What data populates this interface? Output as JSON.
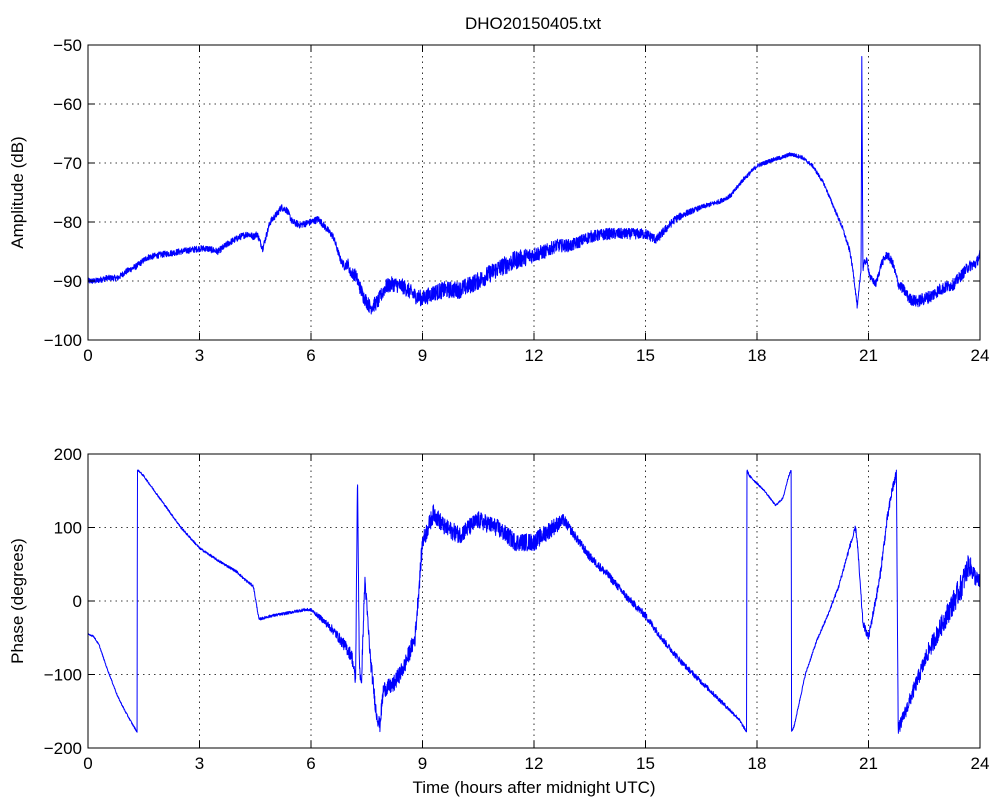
{
  "figure": {
    "title": "DHO20150405.txt",
    "line_color": "#0000ff"
  },
  "chart_data": [
    {
      "type": "line",
      "title": "DHO20150405.txt",
      "xlabel": "",
      "ylabel": "Amplitude (dB)",
      "xlim": [
        0,
        24
      ],
      "ylim": [
        -100,
        -50
      ],
      "xticks": [
        0,
        3,
        6,
        9,
        12,
        15,
        18,
        21,
        24
      ],
      "yticks": [
        -100,
        -90,
        -80,
        -70,
        -60,
        -50
      ],
      "grid": true,
      "series": [
        {
          "color": "#0000ff",
          "noise": [
            [
              0,
              0.5
            ],
            [
              6.8,
              0.6
            ],
            [
              7.3,
              1.2
            ],
            [
              11.5,
              1.6
            ],
            [
              12.5,
              1.1
            ],
            [
              15.0,
              0.9
            ],
            [
              16.5,
              0.4
            ],
            [
              20.0,
              0.3
            ],
            [
              21.5,
              0.7
            ],
            [
              22.5,
              1.1
            ],
            [
              24,
              0.9
            ]
          ],
          "x": [
            0,
            0.2,
            0.5,
            0.8,
            1.0,
            1.3,
            1.6,
            2.0,
            2.5,
            3.0,
            3.2,
            3.5,
            3.8,
            4.1,
            4.3,
            4.45,
            4.55,
            4.7,
            4.9,
            5.1,
            5.2,
            5.35,
            5.5,
            5.7,
            6.0,
            6.2,
            6.4,
            6.6,
            6.8,
            6.9,
            7.0,
            7.05,
            7.2,
            7.4,
            7.6,
            7.8,
            8.0,
            8.2,
            8.5,
            8.8,
            9.0,
            9.3,
            9.6,
            10.0,
            10.5,
            11.0,
            11.5,
            12.0,
            12.3,
            12.6,
            13.0,
            13.5,
            14.0,
            14.5,
            15.0,
            15.3,
            15.5,
            15.8,
            16.1,
            16.5,
            17.0,
            17.3,
            17.6,
            18.0,
            18.4,
            18.7,
            18.9,
            19.2,
            19.5,
            19.8,
            20.1,
            20.3,
            20.5,
            20.6,
            20.7,
            20.8,
            20.82,
            20.85,
            20.88,
            20.95,
            21.05,
            21.2,
            21.35,
            21.5,
            21.65,
            21.8,
            21.95,
            22.1,
            22.3,
            22.5,
            22.7,
            22.9,
            23.1,
            23.3,
            23.5,
            23.7,
            23.9,
            24.0
          ],
          "y": [
            -90,
            -90,
            -89.5,
            -89.5,
            -88.5,
            -87.5,
            -86,
            -85.5,
            -85,
            -84.5,
            -84.5,
            -85,
            -83.5,
            -82.5,
            -82,
            -82.5,
            -82,
            -84.5,
            -80,
            -78.5,
            -77.5,
            -78,
            -80,
            -80.5,
            -80,
            -79.5,
            -81,
            -82.5,
            -86.5,
            -87.5,
            -87,
            -88.5,
            -89,
            -92.5,
            -94.5,
            -93.5,
            -91,
            -90.5,
            -91,
            -92.5,
            -93,
            -92,
            -91.5,
            -91.5,
            -90,
            -88,
            -86.5,
            -85.5,
            -85,
            -84,
            -84,
            -82.5,
            -82,
            -82,
            -82,
            -83,
            -81.5,
            -79.5,
            -78.5,
            -77.5,
            -76.5,
            -75.5,
            -73,
            -70.5,
            -69.5,
            -69,
            -68.5,
            -69,
            -70.5,
            -73.5,
            -78,
            -81,
            -85,
            -89,
            -94.5,
            -88,
            -52,
            -88,
            -87,
            -86.5,
            -89.5,
            -90.5,
            -87,
            -85.5,
            -87,
            -90.5,
            -91.5,
            -93,
            -93.5,
            -93,
            -92.5,
            -91.5,
            -91,
            -90.5,
            -89,
            -87.5,
            -87,
            -85.5
          ]
        }
      ]
    },
    {
      "type": "line",
      "title": "",
      "xlabel": "Time (hours after midnight UTC)",
      "ylabel": "Phase (degrees)",
      "xlim": [
        0,
        24
      ],
      "ylim": [
        -200,
        200
      ],
      "xticks": [
        0,
        3,
        6,
        9,
        12,
        15,
        18,
        21,
        24
      ],
      "yticks": [
        -200,
        -100,
        0,
        100,
        200
      ],
      "grid": true,
      "series": [
        {
          "color": "#0000ff",
          "noise": [
            [
              0,
              1
            ],
            [
              6.0,
              2
            ],
            [
              7.2,
              10
            ],
            [
              9.0,
              12
            ],
            [
              12.5,
              12
            ],
            [
              13.0,
              6
            ],
            [
              15.0,
              5
            ],
            [
              17.0,
              3
            ],
            [
              18.2,
              1
            ],
            [
              20.0,
              2
            ],
            [
              21.8,
              8
            ],
            [
              23.0,
              14
            ],
            [
              23.5,
              18
            ],
            [
              24,
              10
            ]
          ],
          "x": [
            0,
            0.15,
            0.3,
            0.5,
            0.8,
            1.0,
            1.2,
            1.32,
            1.33,
            1.35,
            1.5,
            2.0,
            2.5,
            3.0,
            3.5,
            4.0,
            4.2,
            4.45,
            4.6,
            4.8,
            4.95,
            5.2,
            5.5,
            5.8,
            6.0,
            6.3,
            6.6,
            6.9,
            7.1,
            7.2,
            7.25,
            7.3,
            7.35,
            7.45,
            7.6,
            7.75,
            7.85,
            7.95,
            8.2,
            8.5,
            8.8,
            9.0,
            9.3,
            9.6,
            10.0,
            10.5,
            11.0,
            11.5,
            12.0,
            12.5,
            12.8,
            13.5,
            14.0,
            14.5,
            15.0,
            15.5,
            16.0,
            16.5,
            17.0,
            17.5,
            17.72,
            17.73,
            17.8,
            18.2,
            18.5,
            18.7,
            18.85,
            18.92,
            18.93,
            19.0,
            19.3,
            19.6,
            19.9,
            20.2,
            20.5,
            20.6,
            20.65,
            20.7,
            20.78,
            20.85,
            21.0,
            21.3,
            21.5,
            21.65,
            21.72,
            21.75,
            21.8,
            22.0,
            22.3,
            22.6,
            22.9,
            23.2,
            23.5,
            23.7,
            23.9,
            24.0
          ],
          "y": [
            -45,
            -48,
            -60,
            -90,
            -130,
            -150,
            -168,
            -178,
            178,
            178,
            170,
            135,
            100,
            72,
            55,
            40,
            30,
            20,
            -25,
            -22,
            -20,
            -18,
            -15,
            -12,
            -12,
            -25,
            -40,
            -60,
            -75,
            -110,
            170,
            -80,
            -120,
            30,
            -80,
            -150,
            -170,
            -120,
            -115,
            -90,
            -50,
            80,
            120,
            100,
            90,
            110,
            100,
            80,
            80,
            100,
            110,
            60,
            35,
            5,
            -20,
            -55,
            -85,
            -110,
            -135,
            -160,
            -178,
            178,
            170,
            150,
            130,
            140,
            170,
            178,
            -178,
            -170,
            -100,
            -55,
            -20,
            20,
            75,
            90,
            100,
            80,
            20,
            -30,
            -50,
            30,
            110,
            155,
            165,
            175,
            -175,
            -150,
            -110,
            -70,
            -40,
            -10,
            20,
            50,
            30,
            25
          ]
        }
      ]
    }
  ]
}
